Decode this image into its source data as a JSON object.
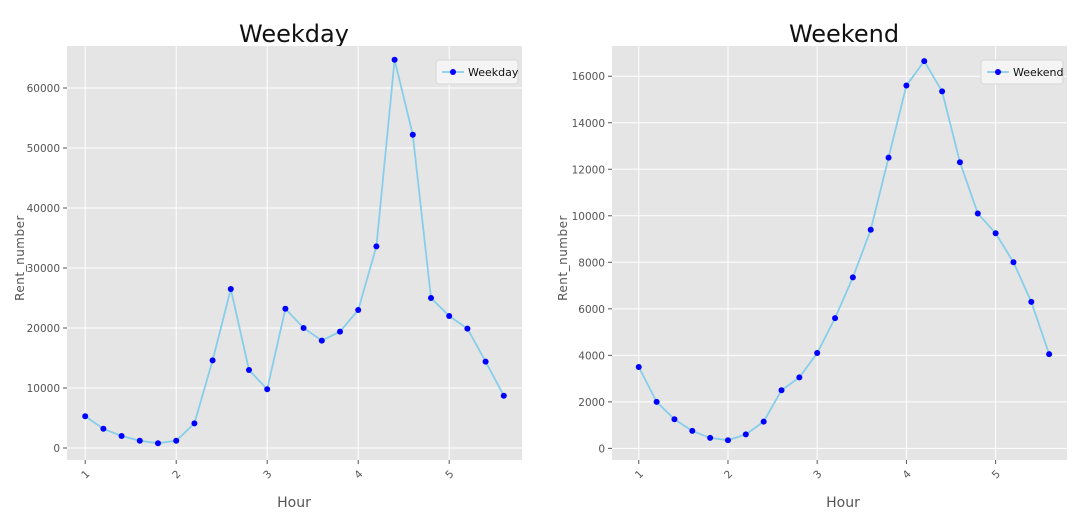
{
  "colors": {
    "panel_bg": "#e5e5e5",
    "grid": "#ffffff",
    "line": "#87ceeb",
    "marker": "#0000ff",
    "legend_bg": "#f4f4f4"
  },
  "chart_data": [
    {
      "type": "line",
      "title": "Weekday",
      "xlabel": "Hour",
      "ylabel": "Rent_number",
      "xlim": [
        0.8,
        5.8
      ],
      "ylim": [
        -2000,
        67000
      ],
      "xticks": [
        1,
        2,
        3,
        4,
        5
      ],
      "yticks": [
        0,
        10000,
        20000,
        30000,
        40000,
        50000,
        60000
      ],
      "grid": true,
      "legend": "top-right",
      "series": [
        {
          "name": "Weekday",
          "x": [
            1.0,
            1.2,
            1.4,
            1.6,
            1.8,
            2.0,
            2.2,
            2.4,
            2.6,
            2.8,
            3.0,
            3.2,
            3.4,
            3.6,
            3.8,
            4.0,
            4.2,
            4.4,
            4.6,
            4.8,
            5.0,
            5.2,
            5.4,
            5.6
          ],
          "values": [
            5300,
            3200,
            2000,
            1200,
            800,
            1200,
            4100,
            14600,
            26500,
            13000,
            9800,
            23200,
            20000,
            17900,
            19400,
            23000,
            33600,
            64700,
            52200,
            25000,
            22000,
            19900,
            14400,
            8700
          ]
        }
      ]
    },
    {
      "type": "line",
      "title": "Weekend",
      "xlabel": "Hour",
      "ylabel": "Rent_number",
      "xlim": [
        0.7,
        5.8
      ],
      "ylim": [
        -500,
        17300
      ],
      "xticks": [
        1,
        2,
        3,
        4,
        5
      ],
      "yticks": [
        0,
        2000,
        4000,
        6000,
        8000,
        10000,
        12000,
        14000,
        16000
      ],
      "grid": true,
      "legend": "top-right",
      "series": [
        {
          "name": "Weekend",
          "x": [
            1.0,
            1.2,
            1.4,
            1.6,
            1.8,
            2.0,
            2.2,
            2.4,
            2.6,
            2.8,
            3.0,
            3.2,
            3.4,
            3.6,
            3.8,
            4.0,
            4.2,
            4.4,
            4.6,
            4.8,
            5.0,
            5.2,
            5.4,
            5.6
          ],
          "values": [
            3500,
            2000,
            1250,
            750,
            450,
            350,
            600,
            1150,
            2500,
            3050,
            4100,
            5600,
            7350,
            9400,
            12500,
            15600,
            16650,
            15350,
            12300,
            10100,
            9250,
            8000,
            6300,
            4050
          ]
        }
      ]
    }
  ]
}
